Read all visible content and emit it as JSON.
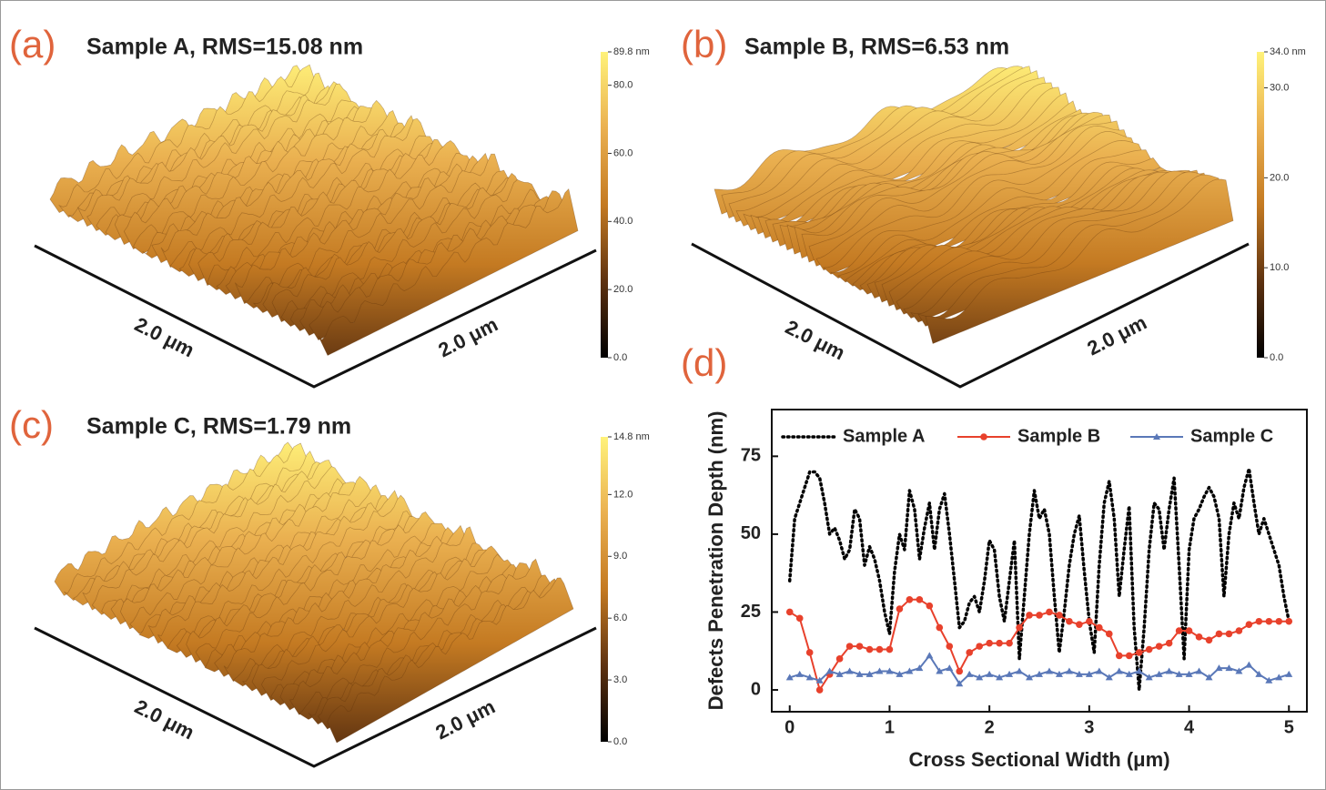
{
  "chart_data": [
    {
      "type": "afm",
      "panel_label": "(a)",
      "title": "Sample A, RMS=15.08 nm",
      "clim": [
        0,
        89.8
      ],
      "cticks": [
        {
          "value": 89.8,
          "label": "89.8 nm"
        },
        {
          "value": 80,
          "label": "80.0"
        },
        {
          "value": 60,
          "label": "60.0"
        },
        {
          "value": 40,
          "label": "40.0"
        },
        {
          "value": 20,
          "label": "20.0"
        },
        {
          "value": 0,
          "label": "0.0"
        }
      ],
      "colors": [
        "#000000",
        "#5e3210",
        "#c47a22",
        "#eab050",
        "#fff27a"
      ],
      "x_label": "2.0 μm",
      "y_label": "2.0 μm"
    },
    {
      "type": "afm",
      "panel_label": "(b)",
      "title": "Sample B, RMS=6.53 nm",
      "clim": [
        0,
        34.0
      ],
      "cticks": [
        {
          "value": 34.0,
          "label": "34.0 nm"
        },
        {
          "value": 30,
          "label": "30.0"
        },
        {
          "value": 20,
          "label": "20.0"
        },
        {
          "value": 10,
          "label": "10.0"
        },
        {
          "value": 0,
          "label": "0.0"
        }
      ],
      "colors": [
        "#000000",
        "#5e3210",
        "#c47a22",
        "#eab050",
        "#fff27a"
      ],
      "x_label": "2.0 μm",
      "y_label": "2.0 μm"
    },
    {
      "type": "afm",
      "panel_label": "(c)",
      "title": "Sample C, RMS=1.79 nm",
      "clim": [
        0,
        14.8
      ],
      "cticks": [
        {
          "value": 14.8,
          "label": "14.8 nm"
        },
        {
          "value": 12,
          "label": "12.0"
        },
        {
          "value": 9,
          "label": "9.0"
        },
        {
          "value": 6,
          "label": "6.0"
        },
        {
          "value": 3,
          "label": "3.0"
        },
        {
          "value": 0,
          "label": "0.0"
        }
      ],
      "colors": [
        "#000000",
        "#5e3210",
        "#c47a22",
        "#eab050",
        "#fff27a"
      ],
      "x_label": "2.0 μm",
      "y_label": "2.0 μm"
    },
    {
      "type": "line",
      "panel_label": "(d)",
      "xlabel": "Cross Sectional Width (μm)",
      "ylabel": "Defects Penetration Depth (nm)",
      "xlim": [
        -0.18,
        5.18
      ],
      "ylim": [
        -7,
        90
      ],
      "xticks": [
        0,
        1,
        2,
        3,
        4,
        5
      ],
      "yticks": [
        0,
        25,
        50,
        75
      ],
      "legend": "top",
      "series": [
        {
          "name": "Sample A",
          "color": "#000000",
          "style": "dotted",
          "x": [
            0,
            0.05,
            0.1,
            0.15,
            0.2,
            0.25,
            0.3,
            0.35,
            0.4,
            0.45,
            0.5,
            0.55,
            0.6,
            0.65,
            0.7,
            0.75,
            0.8,
            0.85,
            0.9,
            0.95,
            1,
            1.05,
            1.1,
            1.15,
            1.2,
            1.25,
            1.3,
            1.35,
            1.4,
            1.45,
            1.5,
            1.55,
            1.6,
            1.65,
            1.7,
            1.75,
            1.8,
            1.85,
            1.9,
            1.95,
            2,
            2.05,
            2.1,
            2.15,
            2.2,
            2.25,
            2.3,
            2.35,
            2.4,
            2.45,
            2.5,
            2.55,
            2.6,
            2.65,
            2.7,
            2.75,
            2.8,
            2.85,
            2.9,
            2.95,
            3,
            3.05,
            3.1,
            3.15,
            3.2,
            3.25,
            3.3,
            3.35,
            3.4,
            3.45,
            3.5,
            3.55,
            3.6,
            3.65,
            3.7,
            3.75,
            3.8,
            3.85,
            3.9,
            3.95,
            4,
            4.05,
            4.1,
            4.15,
            4.2,
            4.25,
            4.3,
            4.35,
            4.4,
            4.45,
            4.5,
            4.55,
            4.6,
            4.65,
            4.7,
            4.75,
            4.8,
            4.85,
            4.9,
            4.95,
            5
          ],
          "values": [
            35,
            55,
            60,
            65,
            70,
            70,
            68,
            60,
            50,
            52,
            48,
            42,
            45,
            58,
            55,
            40,
            46,
            42,
            35,
            25,
            18,
            38,
            50,
            45,
            64,
            58,
            42,
            52,
            60,
            45,
            58,
            63,
            50,
            35,
            20,
            22,
            28,
            30,
            25,
            35,
            48,
            45,
            30,
            22,
            35,
            48,
            10,
            30,
            50,
            64,
            55,
            58,
            50,
            30,
            12,
            25,
            40,
            50,
            56,
            38,
            22,
            12,
            40,
            60,
            67,
            55,
            30,
            45,
            59,
            20,
            0,
            20,
            45,
            60,
            58,
            45,
            58,
            68,
            40,
            10,
            45,
            55,
            58,
            62,
            65,
            62,
            55,
            30,
            50,
            60,
            55,
            65,
            71,
            60,
            50,
            55,
            50,
            45,
            40,
            30,
            22
          ]
        },
        {
          "name": "Sample B",
          "color": "#e8412c",
          "style": "solid",
          "marker": "circle",
          "x": [
            0,
            0.1,
            0.2,
            0.3,
            0.4,
            0.5,
            0.6,
            0.7,
            0.8,
            0.9,
            1,
            1.1,
            1.2,
            1.3,
            1.4,
            1.5,
            1.6,
            1.7,
            1.8,
            1.9,
            2,
            2.1,
            2.2,
            2.3,
            2.4,
            2.5,
            2.6,
            2.7,
            2.8,
            2.9,
            3,
            3.1,
            3.2,
            3.3,
            3.4,
            3.5,
            3.6,
            3.7,
            3.8,
            3.9,
            4,
            4.1,
            4.2,
            4.3,
            4.4,
            4.5,
            4.6,
            4.7,
            4.8,
            4.9,
            5
          ],
          "values": [
            25,
            23,
            12,
            0,
            5,
            10,
            14,
            14,
            13,
            13,
            13,
            26,
            29,
            29,
            27,
            20,
            14,
            6,
            12,
            14,
            15,
            15,
            15,
            20,
            24,
            24,
            25,
            24,
            22,
            21,
            22,
            20,
            18,
            11,
            11,
            12,
            13,
            14,
            15,
            19,
            19,
            17,
            16,
            18,
            18,
            19,
            21,
            22,
            22,
            22,
            22
          ]
        },
        {
          "name": "Sample C",
          "color": "#5a78b8",
          "style": "solid",
          "marker": "triangle",
          "x": [
            0,
            0.1,
            0.2,
            0.3,
            0.4,
            0.5,
            0.6,
            0.7,
            0.8,
            0.9,
            1,
            1.1,
            1.2,
            1.3,
            1.4,
            1.5,
            1.6,
            1.7,
            1.8,
            1.9,
            2,
            2.1,
            2.2,
            2.3,
            2.4,
            2.5,
            2.6,
            2.7,
            2.8,
            2.9,
            3,
            3.1,
            3.2,
            3.3,
            3.4,
            3.5,
            3.6,
            3.7,
            3.8,
            3.9,
            4,
            4.1,
            4.2,
            4.3,
            4.4,
            4.5,
            4.6,
            4.7,
            4.8,
            4.9,
            5
          ],
          "values": [
            4,
            5,
            4,
            3,
            6,
            5,
            6,
            5,
            5,
            6,
            6,
            5,
            6,
            7,
            11,
            6,
            7,
            2,
            5,
            4,
            5,
            4,
            5,
            6,
            4,
            5,
            6,
            5,
            6,
            5,
            5,
            6,
            4,
            6,
            5,
            6,
            4,
            5,
            6,
            5,
            5,
            6,
            4,
            7,
            7,
            6,
            8,
            5,
            3,
            4,
            5
          ]
        }
      ]
    }
  ]
}
